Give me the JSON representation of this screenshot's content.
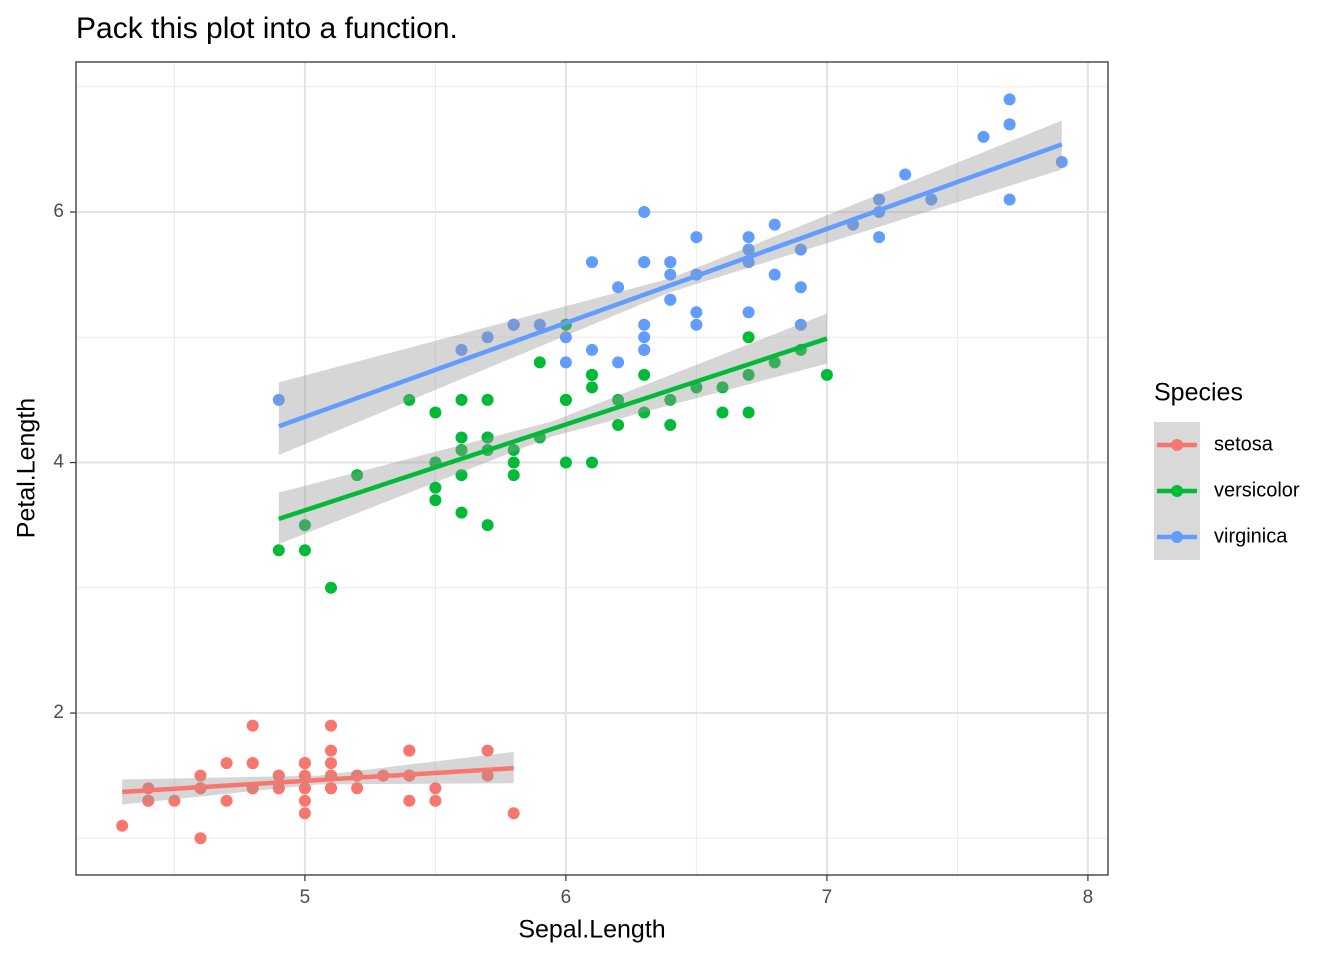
{
  "chart_data": {
    "type": "scatter",
    "title": "Pack this plot into a function.",
    "x_label": "Sepal.Length",
    "y_label": "Petal.Length",
    "legend_title": "Species",
    "legend_position": "right",
    "grid": true,
    "minor_grid": true,
    "xlim": [
      4.123,
      8.077
    ],
    "ylim": [
      0.707,
      7.198
    ],
    "xticks": [
      5,
      6,
      7,
      8
    ],
    "yticks": [
      2,
      4,
      6
    ],
    "series": [
      {
        "name": "setosa",
        "color": "#F8766D",
        "x": [
          5.1,
          4.9,
          4.7,
          4.6,
          5.0,
          5.4,
          4.6,
          5.0,
          4.4,
          4.9,
          5.4,
          4.8,
          4.8,
          4.3,
          5.8,
          5.7,
          5.4,
          5.1,
          5.7,
          5.1,
          5.4,
          5.1,
          4.6,
          5.1,
          4.8,
          5.0,
          5.0,
          5.2,
          5.2,
          4.7,
          4.8,
          5.4,
          5.2,
          5.5,
          4.9,
          5.0,
          5.5,
          4.9,
          4.4,
          5.1,
          5.0,
          4.5,
          4.4,
          5.0,
          5.1,
          4.8,
          5.1,
          4.6,
          5.3,
          5.0
        ],
        "values": [
          1.4,
          1.4,
          1.3,
          1.5,
          1.4,
          1.7,
          1.4,
          1.5,
          1.4,
          1.5,
          1.5,
          1.6,
          1.4,
          1.1,
          1.2,
          1.5,
          1.3,
          1.4,
          1.7,
          1.5,
          1.7,
          1.5,
          1.0,
          1.7,
          1.9,
          1.6,
          1.6,
          1.5,
          1.4,
          1.6,
          1.6,
          1.5,
          1.5,
          1.4,
          1.5,
          1.2,
          1.3,
          1.4,
          1.3,
          1.5,
          1.3,
          1.3,
          1.3,
          1.6,
          1.9,
          1.4,
          1.6,
          1.4,
          1.5,
          1.4
        ],
        "fit": {
          "x": [
            4.3,
            5.8
          ],
          "y": [
            1.37,
            1.56
          ]
        },
        "band": {
          "x": [
            4.3,
            5.05,
            5.8
          ],
          "lower": [
            1.27,
            1.43,
            1.44
          ],
          "upper": [
            1.47,
            1.5,
            1.69
          ]
        }
      },
      {
        "name": "versicolor",
        "color": "#00BA38",
        "x": [
          7.0,
          6.4,
          6.9,
          5.5,
          6.5,
          5.7,
          6.3,
          4.9,
          6.6,
          5.2,
          5.0,
          5.9,
          6.0,
          6.1,
          5.6,
          6.7,
          5.6,
          5.8,
          6.2,
          5.6,
          5.9,
          6.1,
          6.3,
          6.1,
          6.4,
          6.6,
          6.8,
          6.7,
          6.0,
          5.7,
          5.5,
          5.5,
          5.8,
          6.0,
          5.4,
          6.0,
          6.7,
          6.3,
          5.6,
          5.5,
          5.5,
          6.1,
          5.8,
          5.0,
          5.6,
          5.7,
          5.7,
          6.2,
          5.1,
          5.7
        ],
        "values": [
          4.7,
          4.5,
          4.9,
          4.0,
          4.6,
          4.5,
          4.7,
          3.3,
          4.6,
          3.9,
          3.5,
          4.2,
          4.0,
          4.7,
          3.6,
          4.4,
          4.5,
          4.1,
          4.5,
          3.9,
          4.8,
          4.0,
          4.9,
          4.7,
          4.3,
          4.4,
          4.8,
          5.0,
          4.5,
          3.5,
          3.8,
          3.7,
          3.9,
          5.1,
          4.5,
          4.5,
          4.7,
          4.4,
          4.1,
          4.0,
          4.4,
          4.6,
          4.0,
          3.3,
          4.2,
          4.2,
          4.2,
          4.3,
          3.0,
          4.1
        ],
        "fit": {
          "x": [
            4.9,
            7.0
          ],
          "y": [
            3.55,
            4.99
          ]
        },
        "band": {
          "x": [
            4.9,
            5.95,
            7.0
          ],
          "lower": [
            3.35,
            4.21,
            4.79
          ],
          "upper": [
            3.76,
            4.33,
            5.19
          ]
        }
      },
      {
        "name": "virginica",
        "color": "#619CFF",
        "x": [
          6.3,
          5.8,
          7.1,
          6.3,
          6.5,
          7.6,
          4.9,
          7.3,
          6.7,
          7.2,
          6.5,
          6.4,
          6.8,
          5.7,
          5.8,
          6.4,
          6.5,
          7.7,
          7.7,
          6.0,
          6.9,
          5.6,
          7.7,
          6.3,
          6.7,
          7.2,
          6.2,
          6.1,
          6.4,
          7.2,
          7.4,
          7.9,
          6.4,
          6.3,
          6.1,
          7.7,
          6.3,
          6.4,
          6.0,
          6.9,
          6.7,
          6.9,
          5.8,
          6.8,
          6.7,
          6.7,
          6.3,
          6.5,
          6.2,
          5.9
        ],
        "values": [
          6.0,
          5.1,
          5.9,
          5.6,
          5.8,
          6.6,
          4.5,
          6.3,
          5.8,
          6.1,
          5.1,
          5.3,
          5.5,
          5.0,
          5.1,
          5.3,
          5.5,
          6.7,
          6.9,
          5.0,
          5.7,
          4.9,
          6.7,
          4.9,
          5.7,
          6.0,
          4.8,
          4.9,
          5.6,
          5.8,
          6.1,
          6.4,
          5.6,
          5.1,
          5.6,
          6.1,
          5.6,
          5.5,
          4.8,
          5.4,
          5.6,
          5.1,
          5.1,
          5.9,
          5.7,
          5.2,
          5.0,
          5.2,
          5.4,
          5.1
        ],
        "fit": {
          "x": [
            4.9,
            7.9
          ],
          "y": [
            4.29,
            6.54
          ]
        },
        "band": {
          "x": [
            4.9,
            6.4,
            7.9
          ],
          "lower": [
            4.06,
            5.36,
            6.34
          ],
          "upper": [
            4.64,
            5.47,
            6.73
          ]
        }
      }
    ]
  }
}
